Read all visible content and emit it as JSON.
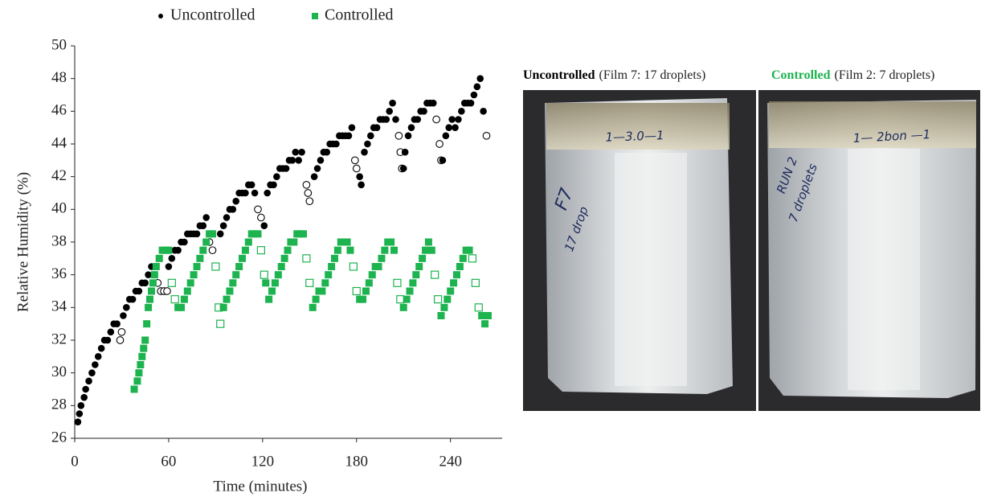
{
  "chart_data": {
    "type": "scatter",
    "xlabel": "Time (minutes)",
    "ylabel": "Relative Humidity (%)",
    "xlim": [
      0,
      273
    ],
    "ylim": [
      26,
      50
    ],
    "xticks": [
      0,
      60,
      120,
      180,
      240
    ],
    "yticks": [
      26,
      28,
      30,
      32,
      34,
      36,
      38,
      40,
      42,
      44,
      46,
      48,
      50
    ],
    "series": [
      {
        "name": "Uncontrolled",
        "color": "#000000",
        "marker": "circle",
        "x": [
          2,
          3,
          4,
          6,
          7,
          9,
          11,
          13,
          15,
          17,
          19,
          21,
          23,
          25,
          27,
          29,
          30,
          31,
          33,
          35,
          37,
          39,
          41,
          43,
          45,
          47,
          49,
          51,
          53,
          55,
          57,
          59,
          60,
          62,
          64,
          66,
          68,
          70,
          72,
          74,
          76,
          78,
          80,
          82,
          84,
          86,
          88,
          93,
          95,
          97,
          99,
          101,
          103,
          105,
          107,
          109,
          111,
          113,
          115,
          117,
          119,
          121,
          123,
          125,
          127,
          129,
          131,
          133,
          135,
          137,
          139,
          141,
          143,
          145,
          148,
          149,
          150,
          153,
          155,
          157,
          159,
          161,
          163,
          165,
          167,
          169,
          171,
          173,
          175,
          177,
          179,
          180,
          182,
          183,
          185,
          187,
          189,
          191,
          193,
          195,
          197,
          199,
          201,
          203,
          205,
          207,
          208,
          209,
          210,
          211,
          213,
          215,
          217,
          219,
          221,
          223,
          225,
          227,
          229,
          231,
          233,
          234,
          235,
          237,
          239,
          241,
          243,
          245,
          247,
          249,
          251,
          253,
          255,
          257,
          259,
          261,
          263
        ],
        "values": [
          27,
          27.5,
          28,
          28.5,
          29,
          29.5,
          30,
          30.5,
          31,
          31.5,
          32,
          32,
          32.5,
          33,
          33,
          32,
          32.5,
          33.5,
          34,
          34.5,
          34.5,
          35,
          35,
          35.5,
          35.5,
          36,
          36.5,
          36.5,
          35.5,
          35,
          35,
          35,
          36.5,
          37,
          37.5,
          37.5,
          38,
          38,
          38.5,
          38.5,
          38.5,
          38.5,
          39,
          39,
          39.5,
          38,
          37.5,
          38.5,
          39,
          39.5,
          40,
          40,
          40.5,
          41,
          41,
          41,
          41.5,
          41.5,
          41,
          40,
          39.5,
          39,
          41,
          41.5,
          41.5,
          42,
          42.5,
          42.5,
          42.5,
          43,
          43,
          43.5,
          43,
          43.5,
          41.5,
          41,
          40.5,
          42,
          42.5,
          43,
          43.5,
          43.5,
          44,
          44,
          44,
          44.5,
          44.5,
          44.5,
          44.5,
          45,
          43,
          42.5,
          42,
          41.5,
          43.5,
          44,
          44.5,
          45,
          45,
          45.5,
          45.5,
          45.5,
          46,
          46.5,
          45.5,
          44.5,
          43.5,
          42.5,
          42.5,
          43.5,
          44.5,
          45,
          45.5,
          45.5,
          46,
          46,
          46.5,
          46.5,
          46.5,
          45.5,
          44,
          43,
          43,
          44.5,
          45,
          45.5,
          45,
          45.5,
          46,
          46.5,
          46.5,
          46.5,
          47,
          47.5,
          48,
          46,
          44.5
        ],
        "hollow": [
          false,
          false,
          false,
          false,
          false,
          false,
          false,
          false,
          false,
          false,
          false,
          false,
          false,
          false,
          false,
          true,
          true,
          false,
          false,
          false,
          false,
          false,
          false,
          false,
          false,
          false,
          false,
          false,
          true,
          true,
          true,
          true,
          false,
          false,
          false,
          false,
          false,
          false,
          false,
          false,
          false,
          false,
          false,
          false,
          false,
          true,
          true,
          false,
          false,
          false,
          false,
          false,
          false,
          false,
          false,
          false,
          false,
          false,
          false,
          true,
          true,
          false,
          false,
          false,
          false,
          false,
          false,
          false,
          false,
          false,
          false,
          false,
          false,
          false,
          true,
          true,
          true,
          false,
          false,
          false,
          false,
          false,
          false,
          false,
          false,
          false,
          false,
          false,
          false,
          false,
          true,
          true,
          false,
          false,
          false,
          false,
          false,
          false,
          false,
          false,
          false,
          false,
          false,
          false,
          false,
          true,
          true,
          true,
          false,
          false,
          false,
          false,
          false,
          false,
          false,
          false,
          false,
          false,
          false,
          true,
          true,
          true,
          false,
          false,
          false,
          false,
          false,
          false,
          false,
          false,
          false,
          false,
          false,
          false,
          false,
          false,
          true
        ]
      },
      {
        "name": "Controlled",
        "color": "#1db34f",
        "marker": "square",
        "x": [
          38,
          40,
          41,
          42,
          43,
          44,
          45,
          46,
          47,
          48,
          49,
          50,
          51,
          52,
          54,
          56,
          58,
          60,
          62,
          64,
          66,
          68,
          70,
          72,
          74,
          76,
          78,
          80,
          82,
          84,
          86,
          88,
          90,
          92,
          93,
          95,
          97,
          99,
          101,
          103,
          105,
          107,
          109,
          111,
          113,
          115,
          117,
          119,
          121,
          122,
          124,
          126,
          128,
          130,
          132,
          134,
          136,
          138,
          140,
          142,
          144,
          146,
          148,
          150,
          152,
          154,
          156,
          158,
          160,
          162,
          164,
          166,
          168,
          170,
          172,
          174,
          176,
          178,
          180,
          182,
          184,
          186,
          188,
          190,
          192,
          194,
          196,
          198,
          200,
          202,
          204,
          206,
          208,
          210,
          212,
          214,
          216,
          218,
          220,
          222,
          224,
          226,
          228,
          230,
          232,
          234,
          236,
          238,
          240,
          242,
          244,
          246,
          248,
          250,
          252,
          254,
          256,
          258,
          260,
          262,
          264
        ],
        "values": [
          29,
          29.5,
          30,
          30.5,
          31,
          31.5,
          32,
          33,
          34,
          34.5,
          35,
          35.5,
          36,
          36.5,
          37,
          37.5,
          37.5,
          37.5,
          35.5,
          34.5,
          34,
          34,
          34.5,
          35,
          35.5,
          36,
          36.5,
          37,
          37.5,
          38,
          38.5,
          38.5,
          36.5,
          34,
          33,
          34,
          34.5,
          35,
          35.5,
          36,
          36.5,
          37,
          37.5,
          38,
          38.5,
          38.5,
          38.5,
          37.5,
          36,
          35.5,
          34.5,
          35,
          35.5,
          36,
          36.5,
          37,
          37.5,
          38,
          38,
          38.5,
          38.5,
          38.5,
          37,
          35.5,
          34,
          34.5,
          35,
          35,
          35.5,
          36,
          36.5,
          37,
          37.5,
          38,
          38,
          38,
          37.5,
          36.5,
          35,
          34.5,
          34.5,
          35,
          35.5,
          36,
          36.5,
          36.5,
          37,
          37.5,
          38,
          38,
          37.5,
          35.5,
          34.5,
          34,
          34.5,
          35,
          35.5,
          36,
          36.5,
          37,
          37.5,
          38,
          37.5,
          36,
          34.5,
          33.5,
          34,
          34.5,
          35,
          35.5,
          36,
          36.5,
          37,
          37.5,
          37.5,
          37,
          35.5,
          34,
          33.5,
          33,
          33.5
        ],
        "hollow": [
          false,
          false,
          false,
          false,
          false,
          false,
          false,
          false,
          false,
          false,
          false,
          false,
          false,
          false,
          false,
          false,
          false,
          false,
          true,
          true,
          false,
          false,
          false,
          false,
          false,
          false,
          false,
          false,
          false,
          false,
          false,
          false,
          true,
          true,
          true,
          false,
          false,
          false,
          false,
          false,
          false,
          false,
          false,
          false,
          false,
          false,
          false,
          true,
          true,
          false,
          false,
          false,
          false,
          false,
          false,
          false,
          false,
          false,
          false,
          false,
          false,
          false,
          true,
          true,
          false,
          false,
          false,
          false,
          false,
          false,
          false,
          false,
          false,
          false,
          false,
          false,
          false,
          true,
          true,
          false,
          false,
          false,
          false,
          false,
          false,
          false,
          false,
          false,
          false,
          false,
          false,
          true,
          true,
          false,
          false,
          false,
          false,
          false,
          false,
          false,
          false,
          false,
          false,
          true,
          true,
          false,
          false,
          false,
          false,
          false,
          false,
          false,
          false,
          false,
          false,
          true,
          true,
          true,
          false,
          false,
          false
        ]
      }
    ]
  },
  "photos": [
    {
      "label": "Uncontrolled",
      "caption": "(Film 7: 17 droplets)",
      "label_color": "#000000",
      "annotations": [
        "1—3.0—1",
        "F7",
        "17 drop"
      ]
    },
    {
      "label": "Controlled",
      "caption": "(Film 2: 7 droplets)",
      "label_color": "#1db34f",
      "annotations": [
        "1— 2bon —1",
        "RUN 2",
        "7 droplets"
      ]
    }
  ]
}
